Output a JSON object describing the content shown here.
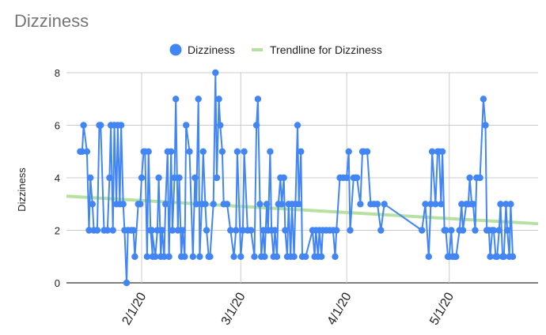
{
  "chart_data": {
    "type": "line",
    "title": "Dizziness",
    "ylabel": "Dizziness",
    "xlabel": "",
    "ylim": [
      0,
      8
    ],
    "y_ticks": [
      0,
      2,
      4,
      6,
      8
    ],
    "x_range": [
      "2020-01-10",
      "2020-05-27"
    ],
    "x_ticks": [
      {
        "date": "2020-02-01",
        "label": "2/1/20"
      },
      {
        "date": "2020-03-01",
        "label": "3/1/20"
      },
      {
        "date": "2020-04-01",
        "label": "4/1/20"
      },
      {
        "date": "2020-05-01",
        "label": "5/1/20"
      }
    ],
    "grid": true,
    "legend_position": "top",
    "series": [
      {
        "name": "Dizziness",
        "color": "#4285f4",
        "points": [
          [
            "2020-01-14",
            5
          ],
          [
            "2020-01-14",
            5
          ],
          [
            "2020-01-15",
            6
          ],
          [
            "2020-01-16",
            5
          ],
          [
            "2020-01-16",
            2
          ],
          [
            "2020-01-17",
            4
          ],
          [
            "2020-01-17",
            3
          ],
          [
            "2020-01-18",
            2
          ],
          [
            "2020-01-19",
            2
          ],
          [
            "2020-01-19",
            6
          ],
          [
            "2020-01-20",
            6
          ],
          [
            "2020-01-21",
            2
          ],
          [
            "2020-01-22",
            2
          ],
          [
            "2020-01-22",
            4
          ],
          [
            "2020-01-23",
            6
          ],
          [
            "2020-01-23",
            2
          ],
          [
            "2020-01-24",
            6
          ],
          [
            "2020-01-24",
            3
          ],
          [
            "2020-01-25",
            6
          ],
          [
            "2020-01-25",
            3
          ],
          [
            "2020-01-26",
            6
          ],
          [
            "2020-01-26",
            3
          ],
          [
            "2020-01-27",
            2
          ],
          [
            "2020-01-27",
            0
          ],
          [
            "2020-01-28",
            2
          ],
          [
            "2020-01-29",
            2
          ],
          [
            "2020-01-29",
            2
          ],
          [
            "2020-01-30",
            1
          ],
          [
            "2020-01-31",
            3
          ],
          [
            "2020-01-31",
            3
          ],
          [
            "2020-02-01",
            4
          ],
          [
            "2020-02-01",
            5
          ],
          [
            "2020-02-02",
            5
          ],
          [
            "2020-02-02",
            1
          ],
          [
            "2020-02-03",
            5
          ],
          [
            "2020-02-03",
            2
          ],
          [
            "2020-02-03",
            1
          ],
          [
            "2020-02-04",
            2
          ],
          [
            "2020-02-05",
            1
          ],
          [
            "2020-02-05",
            2
          ],
          [
            "2020-02-06",
            4
          ],
          [
            "2020-02-06",
            1
          ],
          [
            "2020-02-07",
            2
          ],
          [
            "2020-02-07",
            1
          ],
          [
            "2020-02-08",
            3
          ],
          [
            "2020-02-08",
            5
          ],
          [
            "2020-02-09",
            1
          ],
          [
            "2020-02-09",
            5
          ],
          [
            "2020-02-10",
            2
          ],
          [
            "2020-02-10",
            4
          ],
          [
            "2020-02-11",
            7
          ],
          [
            "2020-02-11",
            2
          ],
          [
            "2020-02-12",
            4
          ],
          [
            "2020-02-12",
            1
          ],
          [
            "2020-02-13",
            2
          ],
          [
            "2020-02-13",
            1
          ],
          [
            "2020-02-14",
            6
          ],
          [
            "2020-02-15",
            5
          ],
          [
            "2020-02-16",
            1
          ],
          [
            "2020-02-16",
            4
          ],
          [
            "2020-02-17",
            3
          ],
          [
            "2020-02-17",
            7
          ],
          [
            "2020-02-18",
            1
          ],
          [
            "2020-02-18",
            3
          ],
          [
            "2020-02-19",
            5
          ],
          [
            "2020-02-19",
            3
          ],
          [
            "2020-02-20",
            2
          ],
          [
            "2020-02-20",
            1
          ],
          [
            "2020-02-21",
            1
          ],
          [
            "2020-02-22",
            3
          ],
          [
            "2020-02-22",
            8
          ],
          [
            "2020-02-23",
            4
          ],
          [
            "2020-02-23",
            7
          ],
          [
            "2020-02-24",
            6
          ],
          [
            "2020-02-24",
            5
          ],
          [
            "2020-02-25",
            3
          ],
          [
            "2020-02-26",
            3
          ],
          [
            "2020-02-27",
            2
          ],
          [
            "2020-02-28",
            1
          ],
          [
            "2020-02-28",
            2
          ],
          [
            "2020-02-29",
            5
          ],
          [
            "2020-03-01",
            1
          ],
          [
            "2020-03-01",
            2
          ],
          [
            "2020-03-02",
            5
          ],
          [
            "2020-03-03",
            2
          ],
          [
            "2020-03-04",
            2
          ],
          [
            "2020-03-05",
            1
          ],
          [
            "2020-03-05",
            6
          ],
          [
            "2020-03-06",
            7
          ],
          [
            "2020-03-06",
            3
          ],
          [
            "2020-03-07",
            1
          ],
          [
            "2020-03-07",
            2
          ],
          [
            "2020-03-08",
            1
          ],
          [
            "2020-03-08",
            3
          ],
          [
            "2020-03-09",
            2
          ],
          [
            "2020-03-09",
            5
          ],
          [
            "2020-03-10",
            2
          ],
          [
            "2020-03-10",
            1
          ],
          [
            "2020-03-11",
            2
          ],
          [
            "2020-03-11",
            1
          ],
          [
            "2020-03-12",
            3
          ],
          [
            "2020-03-12",
            4
          ],
          [
            "2020-03-13",
            3
          ],
          [
            "2020-03-13",
            4
          ],
          [
            "2020-03-14",
            2
          ],
          [
            "2020-03-14",
            1
          ],
          [
            "2020-03-15",
            3
          ],
          [
            "2020-03-15",
            1
          ],
          [
            "2020-03-16",
            3
          ],
          [
            "2020-03-16",
            1
          ],
          [
            "2020-03-17",
            3
          ],
          [
            "2020-03-17",
            6
          ],
          [
            "2020-03-18",
            3
          ],
          [
            "2020-03-18",
            5
          ],
          [
            "2020-03-19",
            1
          ],
          [
            "2020-03-20",
            1
          ],
          [
            "2020-03-22",
            2
          ],
          [
            "2020-03-22",
            1
          ],
          [
            "2020-03-23",
            2
          ],
          [
            "2020-03-23",
            1
          ],
          [
            "2020-03-24",
            2
          ],
          [
            "2020-03-24",
            1
          ],
          [
            "2020-03-25",
            2
          ],
          [
            "2020-03-26",
            2
          ],
          [
            "2020-03-27",
            2
          ],
          [
            "2020-03-28",
            2
          ],
          [
            "2020-03-28",
            1
          ],
          [
            "2020-03-29",
            2
          ],
          [
            "2020-03-30",
            4
          ],
          [
            "2020-03-31",
            4
          ],
          [
            "2020-04-01",
            4
          ],
          [
            "2020-04-01",
            5
          ],
          [
            "2020-04-02",
            2
          ],
          [
            "2020-04-03",
            4
          ],
          [
            "2020-04-03",
            4
          ],
          [
            "2020-04-04",
            4
          ],
          [
            "2020-04-05",
            3
          ],
          [
            "2020-04-05",
            5
          ],
          [
            "2020-04-06",
            5
          ],
          [
            "2020-04-07",
            5
          ],
          [
            "2020-04-08",
            3
          ],
          [
            "2020-04-09",
            3
          ],
          [
            "2020-04-10",
            3
          ],
          [
            "2020-04-11",
            2
          ],
          [
            "2020-04-12",
            3
          ],
          [
            "2020-04-23",
            2
          ],
          [
            "2020-04-24",
            3
          ],
          [
            "2020-04-25",
            1
          ],
          [
            "2020-04-25",
            3
          ],
          [
            "2020-04-26",
            5
          ],
          [
            "2020-04-27",
            3
          ],
          [
            "2020-04-27",
            5
          ],
          [
            "2020-04-28",
            5
          ],
          [
            "2020-04-28",
            3
          ],
          [
            "2020-04-29",
            5
          ],
          [
            "2020-04-29",
            2
          ],
          [
            "2020-04-30",
            2
          ],
          [
            "2020-04-30",
            1
          ],
          [
            "2020-05-01",
            1
          ],
          [
            "2020-05-01",
            2
          ],
          [
            "2020-05-02",
            1
          ],
          [
            "2020-05-02",
            1
          ],
          [
            "2020-05-03",
            1
          ],
          [
            "2020-05-04",
            2
          ],
          [
            "2020-05-04",
            3
          ],
          [
            "2020-05-05",
            2
          ],
          [
            "2020-05-06",
            3
          ],
          [
            "2020-05-06",
            3
          ],
          [
            "2020-05-07",
            4
          ],
          [
            "2020-05-07",
            3
          ],
          [
            "2020-05-08",
            3
          ],
          [
            "2020-05-08",
            2
          ],
          [
            "2020-05-09",
            4
          ],
          [
            "2020-05-10",
            4
          ],
          [
            "2020-05-11",
            7
          ],
          [
            "2020-05-11",
            6
          ],
          [
            "2020-05-12",
            2
          ],
          [
            "2020-05-12",
            2
          ],
          [
            "2020-05-13",
            1
          ],
          [
            "2020-05-13",
            2
          ],
          [
            "2020-05-14",
            2
          ],
          [
            "2020-05-14",
            1
          ],
          [
            "2020-05-15",
            1
          ],
          [
            "2020-05-15",
            2
          ],
          [
            "2020-05-16",
            3
          ],
          [
            "2020-05-16",
            1
          ],
          [
            "2020-05-17",
            1
          ],
          [
            "2020-05-17",
            3
          ],
          [
            "2020-05-18",
            2
          ],
          [
            "2020-05-18",
            1
          ],
          [
            "2020-05-19",
            3
          ],
          [
            "2020-05-19",
            1
          ]
        ]
      },
      {
        "name": "Trendline for Dizziness",
        "color": "#b7e1a1",
        "type": "linear",
        "points": [
          [
            "2020-01-10",
            3.3
          ],
          [
            "2020-05-27",
            2.25
          ]
        ]
      }
    ]
  }
}
